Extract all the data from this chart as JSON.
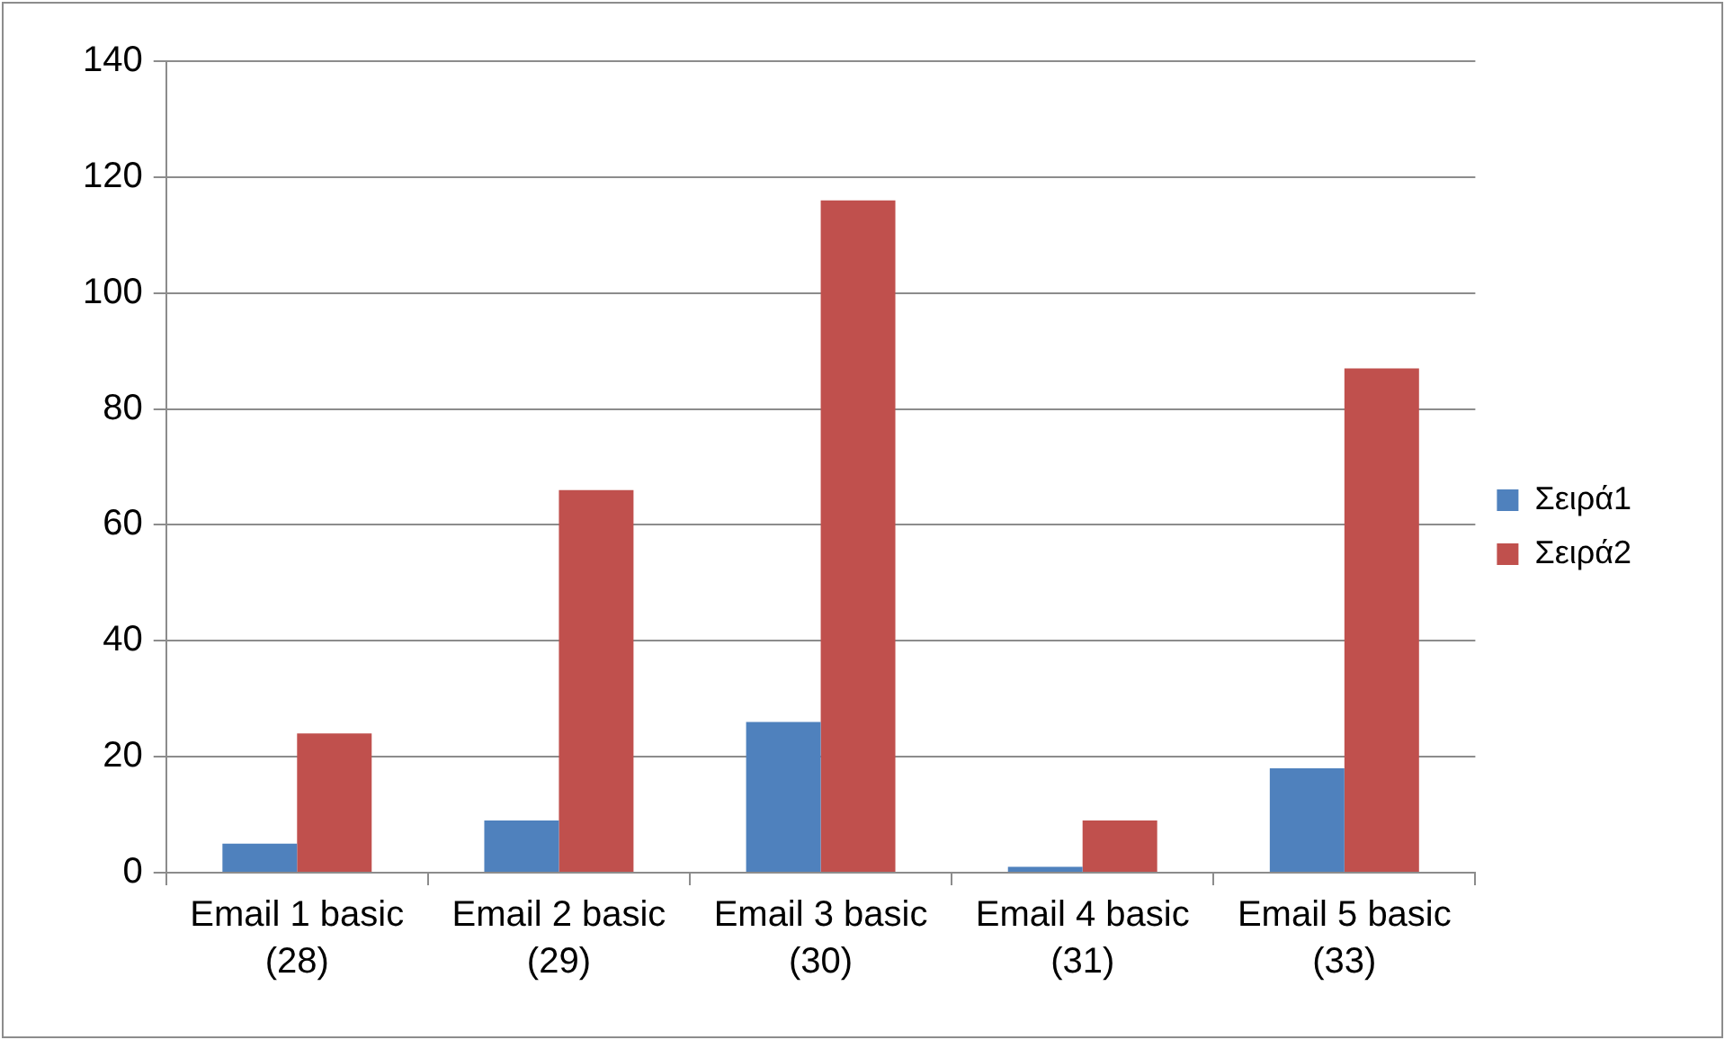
{
  "chart_data": {
    "type": "bar",
    "categories": [
      "Email 1 basic\n(28)",
      "Email 2 basic\n(29)",
      "Email 3 basic\n(30)",
      "Email 4 basic\n(31)",
      "Email 5 basic\n(33)"
    ],
    "series": [
      {
        "name": "Σειρά1",
        "color": "#4f81bd",
        "values": [
          5,
          9,
          26,
          1,
          18
        ]
      },
      {
        "name": "Σειρά2",
        "color": "#c0504d",
        "values": [
          24,
          66,
          116,
          9,
          87
        ]
      }
    ],
    "ylim": [
      0,
      140
    ],
    "yticks": [
      0,
      20,
      40,
      60,
      80,
      100,
      120,
      140
    ],
    "grid": "y",
    "legend": "right"
  }
}
